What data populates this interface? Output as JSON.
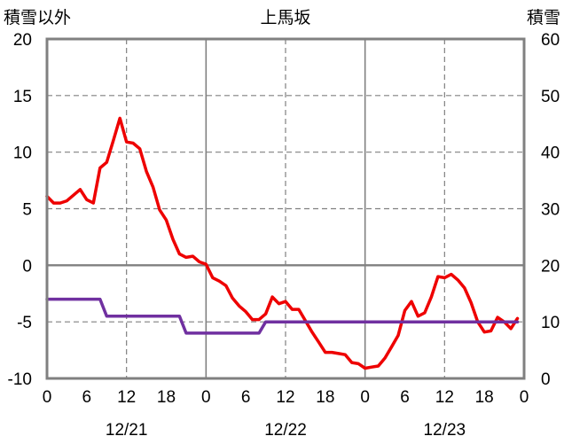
{
  "chart_data": {
    "type": "line",
    "title": "上馬坂",
    "left_axis_label": "積雪以外",
    "right_axis_label": "積雪",
    "left_ylim": [
      -10,
      20
    ],
    "right_ylim": [
      0,
      60
    ],
    "left_yticks": [
      "20",
      "15",
      "10",
      "5",
      "0",
      "-5",
      "-10"
    ],
    "right_yticks": [
      "60",
      "50",
      "40",
      "30",
      "20",
      "10",
      "0"
    ],
    "xlim": [
      0,
      72
    ],
    "x_ticks": [
      0,
      6,
      12,
      18,
      24,
      30,
      36,
      42,
      48,
      54,
      60,
      66,
      72
    ],
    "x_tick_labels": [
      "0",
      "6",
      "12",
      "18",
      "0",
      "6",
      "12",
      "18",
      "0",
      "6",
      "12",
      "18",
      "0"
    ],
    "date_labels": [
      {
        "x": 12,
        "text": "12/21"
      },
      {
        "x": 36,
        "text": "12/22"
      },
      {
        "x": 60,
        "text": "12/23"
      }
    ],
    "grid": {
      "dashed_x": [
        12,
        36,
        60
      ],
      "solid_x": [
        24,
        48
      ],
      "dashed_y": [
        15,
        10,
        5,
        -5
      ],
      "solid_y": [
        0
      ]
    },
    "colors": {
      "temperature": "#ee0000",
      "snow": "#7030a0",
      "zero_line": "#808080",
      "grid": "#808080",
      "frame": "#808080"
    },
    "series": [
      {
        "key": "temperature",
        "axis": "left",
        "color": "#ee0000",
        "x": [
          0,
          1,
          2,
          3,
          4,
          5,
          6,
          7,
          8,
          9,
          10,
          11,
          12,
          13,
          14,
          15,
          16,
          17,
          18,
          19,
          20,
          21,
          22,
          23,
          24,
          25,
          26,
          27,
          28,
          29,
          30,
          31,
          32,
          33,
          34,
          35,
          36,
          37,
          38,
          39,
          40,
          41,
          42,
          43,
          44,
          45,
          46,
          47,
          48,
          49,
          50,
          51,
          52,
          53,
          54,
          55,
          56,
          57,
          58,
          59,
          60,
          61,
          62,
          63,
          64,
          65,
          66,
          67,
          68,
          69,
          70,
          71
        ],
        "values": [
          6.1,
          5.5,
          5.5,
          5.7,
          6.2,
          6.7,
          5.8,
          5.5,
          8.6,
          9.1,
          11.0,
          13.0,
          10.9,
          10.8,
          10.3,
          8.3,
          6.9,
          4.9,
          4.0,
          2.3,
          1.0,
          0.7,
          0.8,
          0.3,
          0.1,
          -1.1,
          -1.4,
          -1.8,
          -2.9,
          -3.6,
          -4.1,
          -4.8,
          -4.8,
          -4.3,
          -2.8,
          -3.4,
          -3.2,
          -3.9,
          -3.9,
          -4.9,
          -5.9,
          -6.8,
          -7.7,
          -7.7,
          -7.8,
          -7.9,
          -8.6,
          -8.7,
          -9.1,
          -9.0,
          -8.9,
          -8.2,
          -7.2,
          -6.2,
          -4.0,
          -3.2,
          -4.5,
          -4.2,
          -2.8,
          -1.0,
          -1.1,
          -0.8,
          -1.3,
          -2.0,
          -3.3,
          -5.0,
          -5.9,
          -5.8,
          -4.6,
          -5.0,
          -5.6,
          -4.7
        ]
      },
      {
        "key": "snow",
        "axis": "right",
        "color": "#7030a0",
        "x": [
          0,
          8,
          9,
          20,
          21,
          32,
          33,
          71
        ],
        "values": [
          14,
          14,
          11,
          11,
          8,
          8,
          10,
          10
        ]
      }
    ]
  }
}
